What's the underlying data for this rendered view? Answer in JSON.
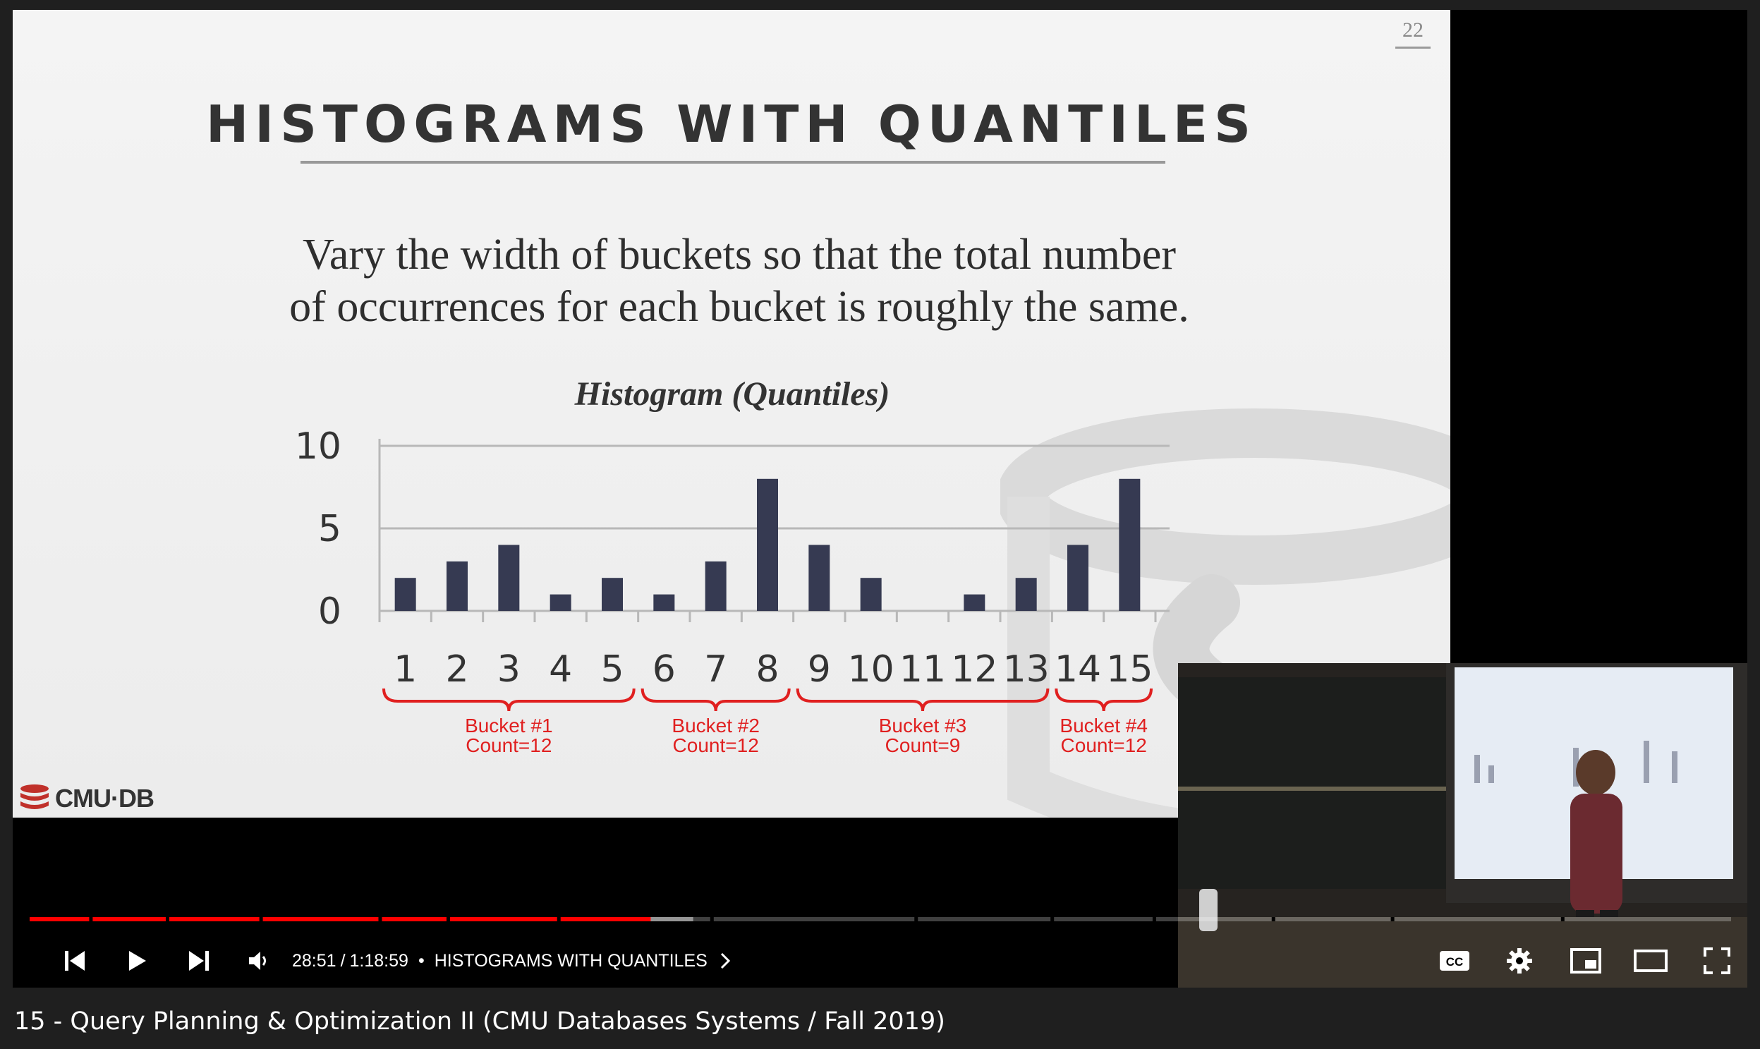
{
  "slide": {
    "number": "22",
    "title": "HISTOGRAMS WITH QUANTILES",
    "body_line1": "Vary the width of buckets so that the total number",
    "body_line2": "of occurrences for each bucket is roughly the same.",
    "logo_text": "CMU·DB"
  },
  "chart_data": {
    "type": "bar",
    "title": "Histogram (Quantiles)",
    "categories": [
      "1",
      "2",
      "3",
      "4",
      "5",
      "6",
      "7",
      "8",
      "9",
      "10",
      "11",
      "12",
      "13",
      "14",
      "15"
    ],
    "values": [
      2,
      3,
      4,
      1,
      2,
      1,
      3,
      8,
      4,
      2,
      0,
      1,
      2,
      4,
      8
    ],
    "yticks": [
      "10",
      "5",
      "0"
    ],
    "ylim": [
      0,
      10
    ],
    "grid": true,
    "bar_color": "#363a52",
    "bucket_color": "#e02020",
    "buckets": [
      {
        "name": "Bucket #1",
        "count": "Count=12",
        "from": "1",
        "to": "5"
      },
      {
        "name": "Bucket #2",
        "count": "Count=12",
        "from": "6",
        "to": "8"
      },
      {
        "name": "Bucket #3",
        "count": "Count=9",
        "from": "9",
        "to": "13"
      },
      {
        "name": "Bucket #4",
        "count": "Count=12",
        "from": "14",
        "to": "15"
      }
    ]
  },
  "player": {
    "current_time": "28:51",
    "duration": "1:18:59",
    "separator": "/",
    "chapter_separator": "•",
    "chapter": "HISTOGRAMS WITH QUANTILES",
    "progress_fraction": 0.365,
    "buffered_fraction": 0.39,
    "accent_color": "#ff0000",
    "icons": [
      "previous-icon",
      "play-icon",
      "next-icon",
      "volume-icon",
      "chevron-right-icon",
      "captions-icon",
      "settings-icon",
      "miniplayer-icon",
      "theater-icon",
      "fullscreen-icon"
    ],
    "cc_label": "CC"
  },
  "video": {
    "title": "15 - Query Planning & Optimization II (CMU Databases Systems / Fall 2019)"
  }
}
